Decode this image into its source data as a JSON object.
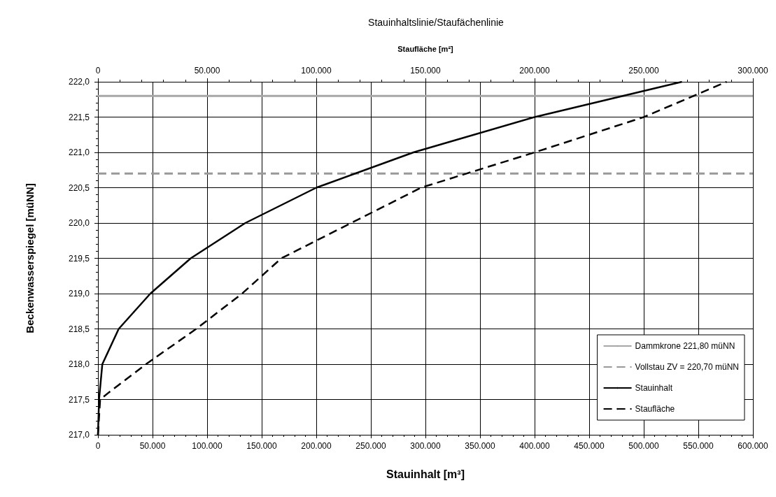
{
  "chart_data": {
    "type": "line",
    "title": "Stauinhaltslinie/Staufächenlinie",
    "xlabel": "Stauinhalt [m³]",
    "x2label": "Staufläche [m²]",
    "ylabel": "Beckenwasserspiegel [müNN]",
    "series": [
      {
        "name": "Stauinhalt",
        "color": "#000000",
        "line_style": "solid",
        "x": [
          0,
          1000,
          4000,
          19000,
          48000,
          85000,
          135000,
          200000,
          289000,
          400000,
          535000
        ],
        "values": [
          217.0,
          217.5,
          218.0,
          218.5,
          219.0,
          219.5,
          220.0,
          220.5,
          221.0,
          221.5,
          222.0
        ]
      },
      {
        "name": "Staufläche",
        "color": "#000000",
        "line_style": "dashed",
        "axis": "x2",
        "x": [
          0,
          1000,
          5000,
          22000,
          45000,
          66000,
          84000,
          100000,
          148000,
          200000,
          250000,
          288000
        ],
        "values": [
          217.0,
          217.5,
          217.6,
          218.0,
          218.5,
          219.0,
          219.5,
          219.75,
          220.5,
          221.0,
          221.5,
          222.0
        ]
      }
    ],
    "ref_lines": [
      {
        "axis": "y",
        "value": 221.8,
        "label": "Dammkrone 221,80 müNN",
        "color": "#a6a6a6",
        "line_style": "solid"
      },
      {
        "axis": "y",
        "value": 220.7,
        "label": "Vollstau ZV = 220,70 müNN",
        "color": "#999999",
        "line_style": "dashed"
      }
    ],
    "xlim": [
      0,
      600000
    ],
    "xticks": [
      0,
      {
        "value": 50000,
        "label": "50.000"
      },
      {
        "value": 100000,
        "label": "100.000"
      },
      {
        "value": 150000,
        "label": "150.000"
      },
      {
        "value": 200000,
        "label": "200.000"
      },
      {
        "value": 250000,
        "label": "250.000"
      },
      {
        "value": 300000,
        "label": "300.000"
      },
      {
        "value": 350000,
        "label": "350.000"
      },
      {
        "value": 400000,
        "label": "400.000"
      },
      {
        "value": 450000,
        "label": "450.000"
      },
      {
        "value": 500000,
        "label": "500.000"
      },
      {
        "value": 550000,
        "label": "550.000"
      },
      {
        "value": 600000,
        "label": "600.000"
      }
    ],
    "x2lim": [
      0,
      300000
    ],
    "x2ticks": [
      0,
      {
        "value": 50000,
        "label": "50.000"
      },
      {
        "value": 100000,
        "label": "100.000"
      },
      {
        "value": 150000,
        "label": "150.000"
      },
      {
        "value": 200000,
        "label": "200.000"
      },
      {
        "value": 250000,
        "label": "250.000"
      },
      {
        "value": 300000,
        "label": "300.000"
      }
    ],
    "ylim": [
      217,
      222
    ],
    "yticks": [
      {
        "value": 217,
        "label": "217,0"
      },
      {
        "value": 217.5,
        "label": "217,5"
      },
      {
        "value": 218,
        "label": "218,0"
      },
      {
        "value": 218.5,
        "label": "218,5"
      },
      {
        "value": 219,
        "label": "219,0"
      },
      {
        "value": 219.5,
        "label": "219,5"
      },
      {
        "value": 220,
        "label": "220,0"
      },
      {
        "value": 220.5,
        "label": "220,5"
      },
      {
        "value": 221,
        "label": "221,0"
      },
      {
        "value": 221.5,
        "label": "221,5"
      },
      {
        "value": 222,
        "label": "222,0"
      }
    ],
    "grid": true,
    "legend": "bottom right",
    "marker": "none"
  }
}
